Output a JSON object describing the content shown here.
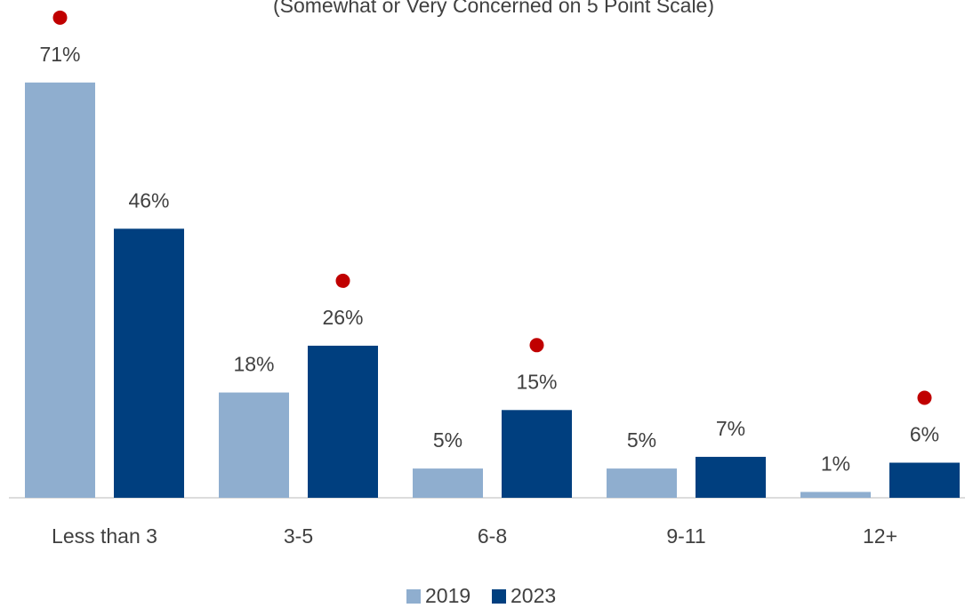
{
  "chart_data": {
    "type": "bar",
    "subtitle": "(Somewhat or Very Concerned on 5 Point Scale)",
    "categories": [
      "Less than 3",
      "3-5",
      "6-8",
      "9-11",
      "12+"
    ],
    "series": [
      {
        "name": "2019",
        "color": "#8faecf",
        "values": [
          71,
          18,
          5,
          5,
          1
        ],
        "value_labels": [
          "71%",
          "18%",
          "5%",
          "5%",
          "1%"
        ],
        "flagged": [
          true,
          false,
          false,
          false,
          false
        ]
      },
      {
        "name": "2023",
        "color": "#003f7f",
        "values": [
          46,
          26,
          15,
          7,
          6
        ],
        "value_labels": [
          "46%",
          "26%",
          "15%",
          "7%",
          "6%"
        ],
        "flagged": [
          false,
          true,
          true,
          false,
          true
        ]
      }
    ],
    "flag_color": "#c00000"
  }
}
